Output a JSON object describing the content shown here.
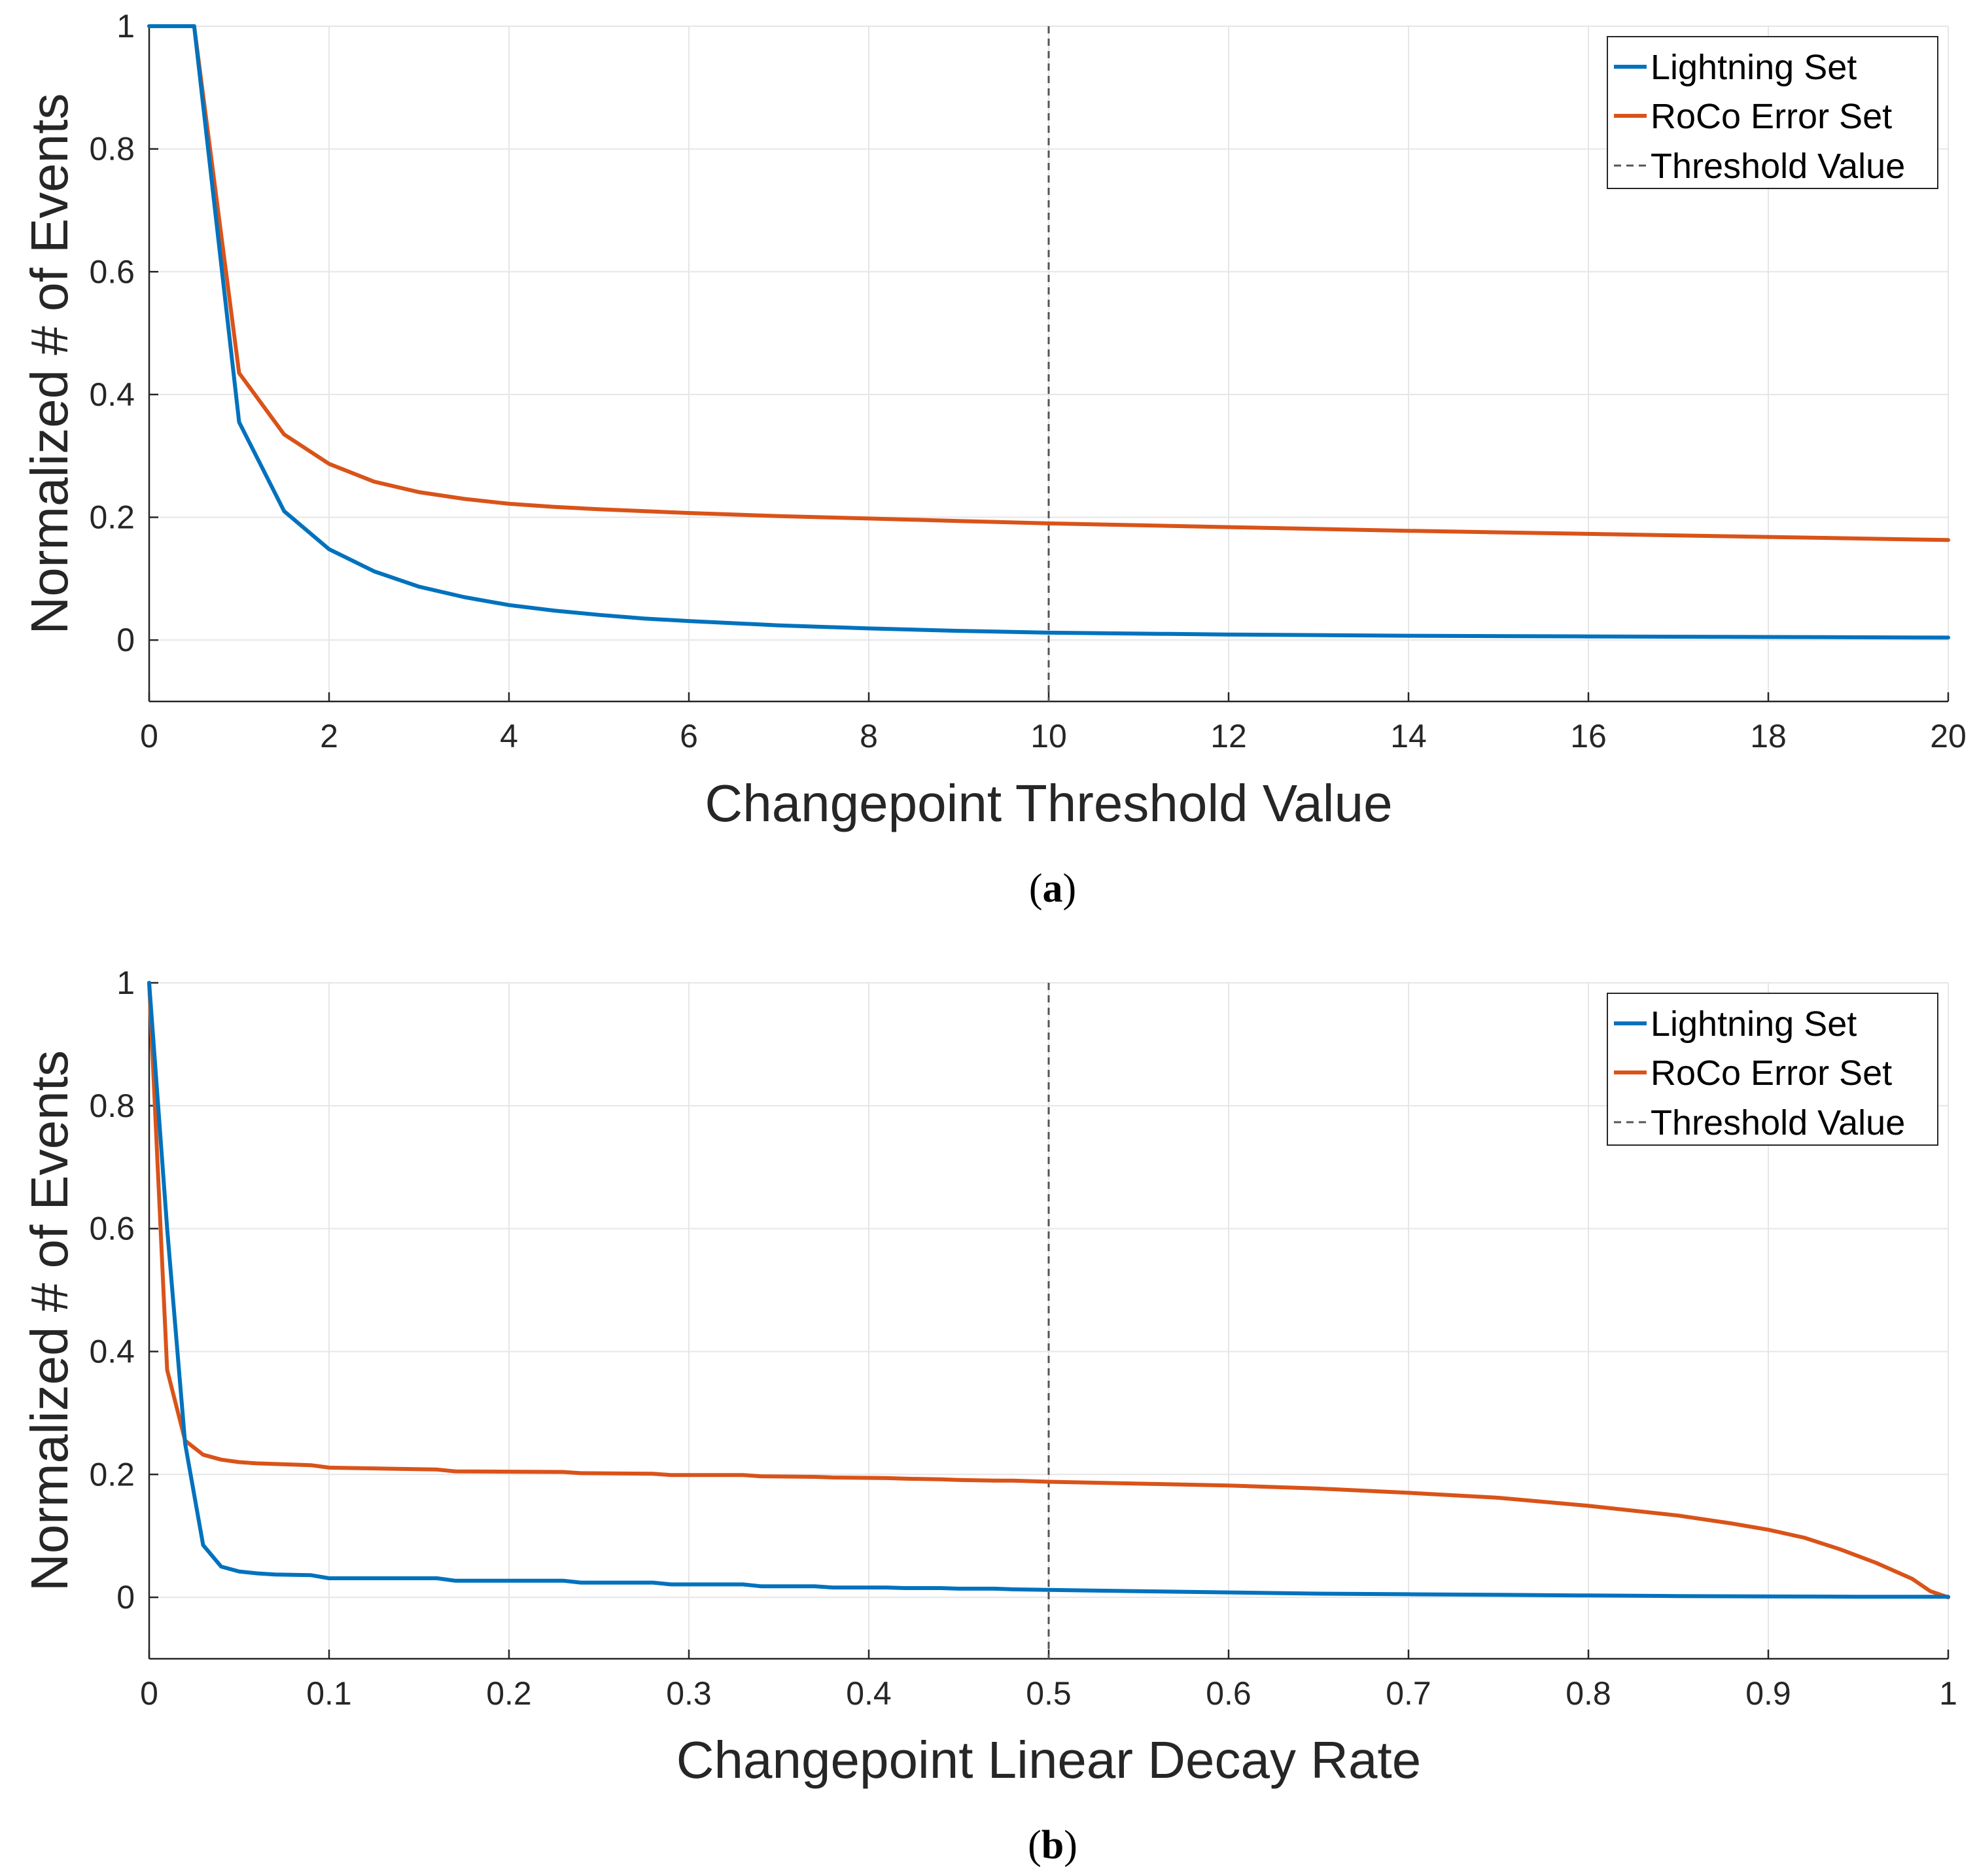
{
  "figure": {
    "captions": [
      "(a)",
      "(b)"
    ],
    "caption_letters": [
      "a",
      "b"
    ]
  },
  "colors": {
    "lightning": "#0072BD",
    "roco": "#D95319",
    "threshold": "#555555",
    "grid": "#e6e6e6",
    "axis": "#262626"
  },
  "chart_data": [
    {
      "id": "a",
      "type": "line",
      "caption": "(a)",
      "xlabel": "Changepoint Threshold Value",
      "ylabel": "Normalized # of Events",
      "xlim": [
        0,
        20
      ],
      "ylim": [
        -0.1,
        1
      ],
      "xticks": [
        0,
        2,
        4,
        6,
        8,
        10,
        12,
        14,
        16,
        18,
        20
      ],
      "xtick_labels": [
        "0",
        "2",
        "4",
        "6",
        "8",
        "10",
        "12",
        "14",
        "16",
        "18",
        "20"
      ],
      "yticks": [
        0,
        0.2,
        0.4,
        0.6,
        0.8,
        1
      ],
      "ytick_labels": [
        "0",
        "0.2",
        "0.4",
        "0.6",
        "0.8",
        "1"
      ],
      "grid": true,
      "legend": {
        "position": "top-right",
        "entries": [
          "Lightning Set",
          "RoCo Error Set",
          "Threshold Value"
        ]
      },
      "threshold": 10,
      "series": [
        {
          "name": "Lightning Set",
          "x": [
            0,
            0.5,
            1,
            1.5,
            2,
            2.5,
            3,
            3.5,
            4,
            4.5,
            5,
            5.5,
            6,
            7,
            8,
            9,
            10,
            12,
            14,
            16,
            18,
            20
          ],
          "y": [
            1,
            1,
            0.355,
            0.21,
            0.148,
            0.112,
            0.087,
            0.07,
            0.057,
            0.048,
            0.041,
            0.035,
            0.031,
            0.024,
            0.019,
            0.015,
            0.012,
            0.009,
            0.007,
            0.006,
            0.005,
            0.004
          ]
        },
        {
          "name": "RoCo Error Set",
          "x": [
            0,
            0.5,
            1,
            1.5,
            2,
            2.5,
            3,
            3.5,
            4,
            4.5,
            5,
            6,
            7,
            8,
            9,
            10,
            12,
            14,
            16,
            18,
            20
          ],
          "y": [
            1,
            1,
            0.435,
            0.335,
            0.287,
            0.258,
            0.241,
            0.23,
            0.222,
            0.217,
            0.213,
            0.207,
            0.202,
            0.198,
            0.194,
            0.19,
            0.184,
            0.178,
            0.173,
            0.168,
            0.163
          ]
        }
      ]
    },
    {
      "id": "b",
      "type": "line",
      "caption": "(b)",
      "xlabel": "Changepoint Linear Decay Rate",
      "ylabel": "Normalized # of Events",
      "xlim": [
        0,
        1
      ],
      "ylim": [
        -0.1,
        1
      ],
      "xticks": [
        0,
        0.1,
        0.2,
        0.3,
        0.4,
        0.5,
        0.6,
        0.7,
        0.8,
        0.9,
        1
      ],
      "xtick_labels": [
        "0",
        "0.1",
        "0.2",
        "0.3",
        "0.4",
        "0.5",
        "0.6",
        "0.7",
        "0.8",
        "0.9",
        "1"
      ],
      "yticks": [
        0,
        0.2,
        0.4,
        0.6,
        0.8,
        1
      ],
      "ytick_labels": [
        "0",
        "0.2",
        "0.4",
        "0.6",
        "0.8",
        "1"
      ],
      "grid": true,
      "legend": {
        "position": "top-right",
        "entries": [
          "Lightning Set",
          "RoCo Error Set",
          "Threshold Value"
        ]
      },
      "threshold": 0.5,
      "series": [
        {
          "name": "Lightning Set",
          "x": [
            0,
            0.01,
            0.02,
            0.03,
            0.04,
            0.05,
            0.06,
            0.07,
            0.09,
            0.1,
            0.16,
            0.17,
            0.23,
            0.24,
            0.28,
            0.29,
            0.33,
            0.34,
            0.37,
            0.38,
            0.41,
            0.42,
            0.44,
            0.45,
            0.47,
            0.48,
            0.5,
            0.55,
            0.6,
            0.65,
            0.7,
            0.75,
            0.8,
            0.85,
            0.9,
            0.95,
            1
          ],
          "y": [
            1,
            0.6,
            0.25,
            0.085,
            0.05,
            0.042,
            0.039,
            0.037,
            0.036,
            0.031,
            0.031,
            0.027,
            0.027,
            0.024,
            0.024,
            0.021,
            0.021,
            0.018,
            0.018,
            0.016,
            0.016,
            0.015,
            0.015,
            0.014,
            0.014,
            0.013,
            0.012,
            0.01,
            0.008,
            0.006,
            0.005,
            0.004,
            0.003,
            0.002,
            0.0015,
            0.001,
            0.001
          ]
        },
        {
          "name": "RoCo Error Set",
          "x": [
            0,
            0.01,
            0.02,
            0.03,
            0.04,
            0.05,
            0.06,
            0.08,
            0.09,
            0.1,
            0.16,
            0.17,
            0.23,
            0.24,
            0.28,
            0.29,
            0.33,
            0.34,
            0.37,
            0.38,
            0.41,
            0.42,
            0.44,
            0.45,
            0.47,
            0.48,
            0.5,
            0.55,
            0.6,
            0.65,
            0.7,
            0.75,
            0.8,
            0.85,
            0.88,
            0.9,
            0.92,
            0.94,
            0.96,
            0.98,
            0.99,
            1
          ],
          "y": [
            1,
            0.37,
            0.255,
            0.232,
            0.224,
            0.22,
            0.218,
            0.216,
            0.215,
            0.211,
            0.208,
            0.205,
            0.204,
            0.202,
            0.201,
            0.199,
            0.199,
            0.197,
            0.196,
            0.195,
            0.194,
            0.193,
            0.192,
            0.191,
            0.19,
            0.19,
            0.188,
            0.185,
            0.182,
            0.177,
            0.17,
            0.162,
            0.149,
            0.133,
            0.12,
            0.11,
            0.097,
            0.078,
            0.056,
            0.03,
            0.01,
            0.0
          ]
        }
      ]
    }
  ]
}
